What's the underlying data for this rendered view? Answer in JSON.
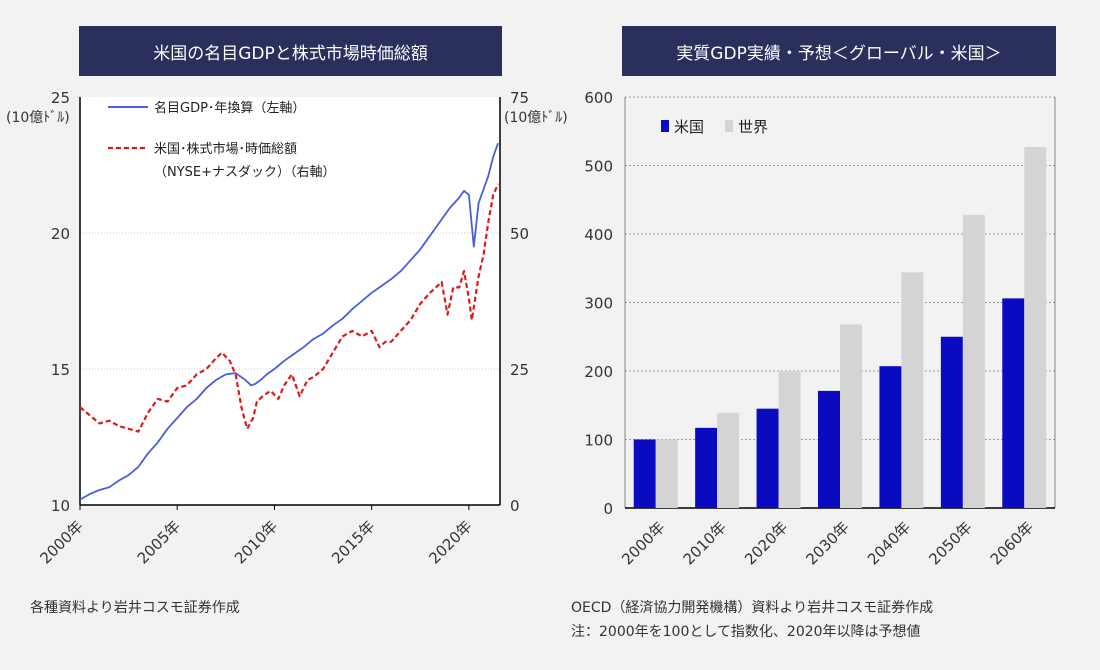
{
  "colors": {
    "title_bg": "#2b2f5c",
    "gdp_line": "#4a5fd6",
    "market_line": "#d91c1c",
    "us_bar": "#0a0ac0",
    "world_bar": "#d4d4d4"
  },
  "chart_data": [
    {
      "type": "line",
      "title": "米国の名目GDPと株式市場時価総額",
      "xlabel": "",
      "x_tick_labels": [
        "2000年",
        "2005年",
        "2010年",
        "2015年",
        "2020年"
      ],
      "xlim": [
        2000,
        2021.6
      ],
      "y_left": {
        "unit": "(10億ﾄﾞﾙ)",
        "lim": [
          10,
          25
        ],
        "ticks": [
          "10",
          "15",
          "20",
          "25"
        ]
      },
      "y_right": {
        "unit": "(10億ﾄﾞﾙ)",
        "lim": [
          0,
          75
        ],
        "ticks": [
          "0",
          "25",
          "50",
          "75"
        ]
      },
      "legend_position": "top-left",
      "series": [
        {
          "name": "名目GDP･年換算（左軸）",
          "axis": "left",
          "style": "solid",
          "x": [
            2000,
            2000.5,
            2001,
            2001.5,
            2002,
            2002.5,
            2003,
            2003.5,
            2004,
            2004.5,
            2005,
            2005.5,
            2006,
            2006.5,
            2007,
            2007.5,
            2008,
            2008.5,
            2008.8,
            2009,
            2009.3,
            2009.6,
            2010,
            2010.5,
            2011,
            2011.5,
            2012,
            2012.5,
            2013,
            2013.5,
            2014,
            2014.5,
            2015,
            2015.5,
            2016,
            2016.5,
            2017,
            2017.5,
            2018,
            2018.5,
            2019,
            2019.5,
            2019.75,
            2020,
            2020.25,
            2020.5,
            2020.75,
            2021,
            2021.25,
            2021.5
          ],
          "values": [
            10.2,
            10.4,
            10.55,
            10.65,
            10.9,
            11.1,
            11.4,
            11.9,
            12.3,
            12.8,
            13.2,
            13.6,
            13.9,
            14.3,
            14.6,
            14.8,
            14.85,
            14.6,
            14.4,
            14.45,
            14.6,
            14.8,
            15.0,
            15.3,
            15.55,
            15.8,
            16.1,
            16.3,
            16.6,
            16.85,
            17.2,
            17.5,
            17.8,
            18.05,
            18.3,
            18.6,
            19.0,
            19.4,
            19.9,
            20.4,
            20.9,
            21.3,
            21.55,
            21.4,
            19.5,
            21.1,
            21.6,
            22.1,
            22.8,
            23.3
          ]
        },
        {
          "name": "米国･株式市場･時価総額（NYSE+ナスダック）（右軸）",
          "axis": "right",
          "style": "dashed",
          "x": [
            2000,
            2000.5,
            2001,
            2001.5,
            2002,
            2002.5,
            2003,
            2003.5,
            2004,
            2004.5,
            2005,
            2005.5,
            2006,
            2006.5,
            2007,
            2007.3,
            2007.7,
            2008,
            2008.3,
            2008.6,
            2008.9,
            2009.1,
            2009.4,
            2009.8,
            2010.2,
            2010.5,
            2010.9,
            2011.3,
            2011.7,
            2012,
            2012.5,
            2013,
            2013.5,
            2014,
            2014.5,
            2015,
            2015.4,
            2015.7,
            2016,
            2016.5,
            2017,
            2017.5,
            2018,
            2018.3,
            2018.6,
            2018.9,
            2019.2,
            2019.5,
            2019.75,
            2020,
            2020.15,
            2020.5,
            2020.75,
            2021,
            2021.25,
            2021.5
          ],
          "values": [
            18,
            16.5,
            15,
            15.5,
            14.5,
            14,
            13.5,
            17,
            19.5,
            19,
            21.5,
            22,
            24,
            25,
            27,
            28,
            26.5,
            24,
            18,
            14,
            16,
            19,
            20,
            21,
            19.5,
            22,
            24,
            20,
            23,
            23.5,
            25,
            28,
            31,
            32,
            31,
            32,
            29,
            30,
            30,
            32,
            34,
            37,
            39,
            40,
            41,
            35,
            40,
            40,
            43,
            38,
            34,
            42,
            46,
            52,
            57,
            59
          ]
        }
      ],
      "source_note": "各種資料より岩井コスモ証券作成"
    },
    {
      "type": "bar",
      "title": "実質GDP実績・予想＜グローバル・米国＞",
      "categories": [
        "2000年",
        "2010年",
        "2020年",
        "2030年",
        "2040年",
        "2050年",
        "2060年"
      ],
      "ylim": [
        0,
        600
      ],
      "y_ticks": [
        "0",
        "100",
        "200",
        "300",
        "400",
        "500",
        "600"
      ],
      "grid": "horizontal dotted",
      "legend_position": "top-left",
      "series": [
        {
          "name": "米国",
          "values": [
            100,
            117,
            145,
            171,
            207,
            250,
            306
          ]
        },
        {
          "name": "世界",
          "values": [
            100,
            139,
            200,
            268,
            344,
            428,
            527
          ]
        }
      ],
      "source_note": "OECD（経済協力開発機構）資料より岩井コスモ証券作成",
      "footnote": "注：2000年を100として指数化、2020年以降は予想値"
    }
  ]
}
